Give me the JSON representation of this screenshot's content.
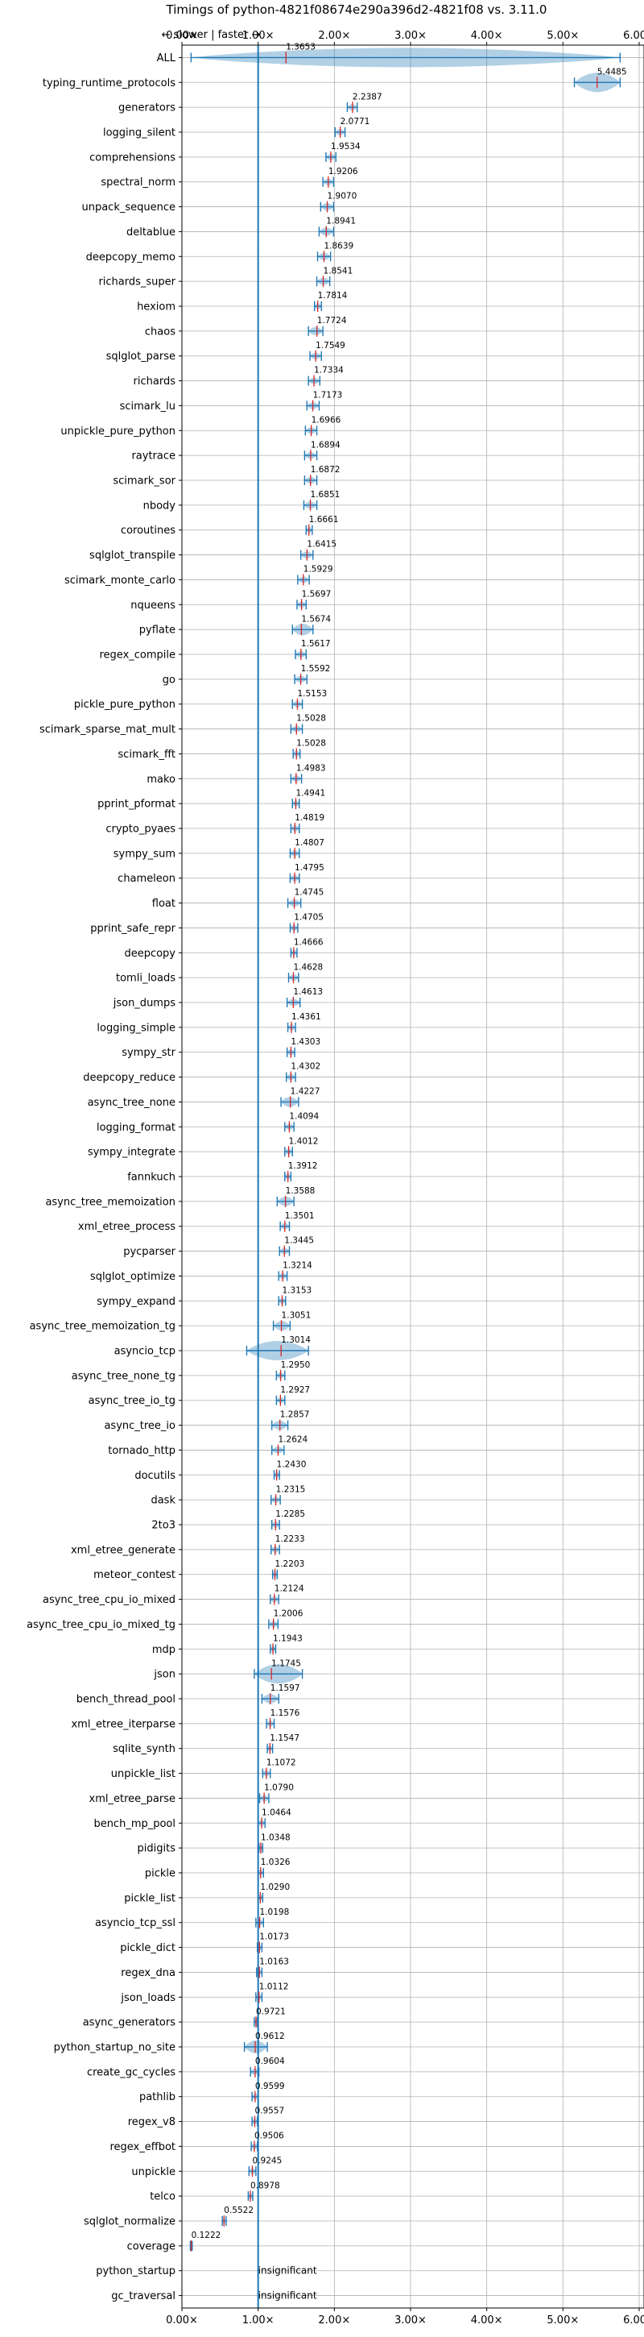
{
  "chart_data": {
    "type": "violin",
    "title": "Timings of python-4821f08674e290a396d2-4821f08 vs. 3.11.0",
    "direction_label": "← slower | faster →",
    "x_ticks": [
      "0.00×",
      "1.00×",
      "2.00×",
      "3.00×",
      "4.00×",
      "5.00×",
      "6.00×"
    ],
    "xlim": [
      0,
      6
    ],
    "reference_line": 1.0,
    "grid": true,
    "colors": {
      "violin": "#1f77b4",
      "mean": "#d62728",
      "axis": "#000000",
      "grid": "#b0b0b0"
    },
    "benchmarks": [
      {
        "name": "ALL",
        "value": "1.3653",
        "v": 1.3653,
        "lo": 0.12,
        "hi": 5.75
      },
      {
        "name": "typing_runtime_protocols",
        "value": "5.4485",
        "v": 5.4485,
        "lo": 5.15,
        "hi": 5.75
      },
      {
        "name": "generators",
        "value": "2.2387",
        "v": 2.2387,
        "lo": 2.17,
        "hi": 2.3
      },
      {
        "name": "logging_silent",
        "value": "2.0771",
        "v": 2.0771,
        "lo": 2.01,
        "hi": 2.14
      },
      {
        "name": "comprehensions",
        "value": "1.9534",
        "v": 1.9534,
        "lo": 1.89,
        "hi": 2.02
      },
      {
        "name": "spectral_norm",
        "value": "1.9206",
        "v": 1.9206,
        "lo": 1.85,
        "hi": 1.99
      },
      {
        "name": "unpack_sequence",
        "value": "1.9070",
        "v": 1.907,
        "lo": 1.82,
        "hi": 1.99
      },
      {
        "name": "deltablue",
        "value": "1.8941",
        "v": 1.8941,
        "lo": 1.8,
        "hi": 1.99
      },
      {
        "name": "deepcopy_memo",
        "value": "1.8639",
        "v": 1.8639,
        "lo": 1.78,
        "hi": 1.95
      },
      {
        "name": "richards_super",
        "value": "1.8541",
        "v": 1.8541,
        "lo": 1.77,
        "hi": 1.94
      },
      {
        "name": "hexiom",
        "value": "1.7814",
        "v": 1.7814,
        "lo": 1.74,
        "hi": 1.83
      },
      {
        "name": "chaos",
        "value": "1.7724",
        "v": 1.7724,
        "lo": 1.66,
        "hi": 1.85
      },
      {
        "name": "sqlglot_parse",
        "value": "1.7549",
        "v": 1.7549,
        "lo": 1.68,
        "hi": 1.83
      },
      {
        "name": "richards",
        "value": "1.7334",
        "v": 1.7334,
        "lo": 1.66,
        "hi": 1.81
      },
      {
        "name": "scimark_lu",
        "value": "1.7173",
        "v": 1.7173,
        "lo": 1.64,
        "hi": 1.8
      },
      {
        "name": "unpickle_pure_python",
        "value": "1.6966",
        "v": 1.6966,
        "lo": 1.62,
        "hi": 1.77
      },
      {
        "name": "raytrace",
        "value": "1.6894",
        "v": 1.6894,
        "lo": 1.61,
        "hi": 1.77
      },
      {
        "name": "scimark_sor",
        "value": "1.6872",
        "v": 1.6872,
        "lo": 1.61,
        "hi": 1.77
      },
      {
        "name": "nbody",
        "value": "1.6851",
        "v": 1.6851,
        "lo": 1.6,
        "hi": 1.77
      },
      {
        "name": "coroutines",
        "value": "1.6661",
        "v": 1.6661,
        "lo": 1.63,
        "hi": 1.71
      },
      {
        "name": "sqlglot_transpile",
        "value": "1.6415",
        "v": 1.6415,
        "lo": 1.56,
        "hi": 1.72
      },
      {
        "name": "scimark_monte_carlo",
        "value": "1.5929",
        "v": 1.5929,
        "lo": 1.52,
        "hi": 1.67
      },
      {
        "name": "nqueens",
        "value": "1.5697",
        "v": 1.5697,
        "lo": 1.51,
        "hi": 1.63
      },
      {
        "name": "pyflate",
        "value": "1.5674",
        "v": 1.5674,
        "lo": 1.45,
        "hi": 1.72
      },
      {
        "name": "regex_compile",
        "value": "1.5617",
        "v": 1.5617,
        "lo": 1.49,
        "hi": 1.63
      },
      {
        "name": "go",
        "value": "1.5592",
        "v": 1.5592,
        "lo": 1.48,
        "hi": 1.64
      },
      {
        "name": "pickle_pure_python",
        "value": "1.5153",
        "v": 1.5153,
        "lo": 1.45,
        "hi": 1.58
      },
      {
        "name": "scimark_sparse_mat_mult",
        "value": "1.5028",
        "v": 1.5028,
        "lo": 1.43,
        "hi": 1.58
      },
      {
        "name": "scimark_fft",
        "value": "1.5028",
        "v": 1.5028,
        "lo": 1.46,
        "hi": 1.55
      },
      {
        "name": "mako",
        "value": "1.4983",
        "v": 1.4983,
        "lo": 1.43,
        "hi": 1.57
      },
      {
        "name": "pprint_pformat",
        "value": "1.4941",
        "v": 1.4941,
        "lo": 1.45,
        "hi": 1.54
      },
      {
        "name": "crypto_pyaes",
        "value": "1.4819",
        "v": 1.4819,
        "lo": 1.43,
        "hi": 1.54
      },
      {
        "name": "sympy_sum",
        "value": "1.4807",
        "v": 1.4807,
        "lo": 1.42,
        "hi": 1.54
      },
      {
        "name": "chameleon",
        "value": "1.4795",
        "v": 1.4795,
        "lo": 1.42,
        "hi": 1.54
      },
      {
        "name": "float",
        "value": "1.4745",
        "v": 1.4745,
        "lo": 1.39,
        "hi": 1.56
      },
      {
        "name": "pprint_safe_repr",
        "value": "1.4705",
        "v": 1.4705,
        "lo": 1.42,
        "hi": 1.52
      },
      {
        "name": "deepcopy",
        "value": "1.4666",
        "v": 1.4666,
        "lo": 1.43,
        "hi": 1.51
      },
      {
        "name": "tomli_loads",
        "value": "1.4628",
        "v": 1.4628,
        "lo": 1.4,
        "hi": 1.53
      },
      {
        "name": "json_dumps",
        "value": "1.4613",
        "v": 1.4613,
        "lo": 1.38,
        "hi": 1.55
      },
      {
        "name": "logging_simple",
        "value": "1.4361",
        "v": 1.4361,
        "lo": 1.39,
        "hi": 1.49
      },
      {
        "name": "sympy_str",
        "value": "1.4303",
        "v": 1.4303,
        "lo": 1.38,
        "hi": 1.48
      },
      {
        "name": "deepcopy_reduce",
        "value": "1.4302",
        "v": 1.4302,
        "lo": 1.37,
        "hi": 1.49
      },
      {
        "name": "async_tree_none",
        "value": "1.4227",
        "v": 1.4227,
        "lo": 1.3,
        "hi": 1.53
      },
      {
        "name": "logging_format",
        "value": "1.4094",
        "v": 1.4094,
        "lo": 1.35,
        "hi": 1.47
      },
      {
        "name": "sympy_integrate",
        "value": "1.4012",
        "v": 1.4012,
        "lo": 1.35,
        "hi": 1.45
      },
      {
        "name": "fannkuch",
        "value": "1.3912",
        "v": 1.3912,
        "lo": 1.35,
        "hi": 1.43
      },
      {
        "name": "async_tree_memoization",
        "value": "1.3588",
        "v": 1.3588,
        "lo": 1.25,
        "hi": 1.47
      },
      {
        "name": "xml_etree_process",
        "value": "1.3501",
        "v": 1.3501,
        "lo": 1.29,
        "hi": 1.41
      },
      {
        "name": "pycparser",
        "value": "1.3445",
        "v": 1.3445,
        "lo": 1.28,
        "hi": 1.41
      },
      {
        "name": "sqlglot_optimize",
        "value": "1.3214",
        "v": 1.3214,
        "lo": 1.27,
        "hi": 1.38
      },
      {
        "name": "sympy_expand",
        "value": "1.3153",
        "v": 1.3153,
        "lo": 1.27,
        "hi": 1.36
      },
      {
        "name": "async_tree_memoization_tg",
        "value": "1.3051",
        "v": 1.3051,
        "lo": 1.2,
        "hi": 1.42
      },
      {
        "name": "asyncio_tcp",
        "value": "1.3014",
        "v": 1.3014,
        "lo": 0.85,
        "hi": 1.66
      },
      {
        "name": "async_tree_none_tg",
        "value": "1.2950",
        "v": 1.295,
        "lo": 1.24,
        "hi": 1.35
      },
      {
        "name": "async_tree_io_tg",
        "value": "1.2927",
        "v": 1.2927,
        "lo": 1.24,
        "hi": 1.35
      },
      {
        "name": "async_tree_io",
        "value": "1.2857",
        "v": 1.2857,
        "lo": 1.18,
        "hi": 1.39
      },
      {
        "name": "tornado_http",
        "value": "1.2624",
        "v": 1.2624,
        "lo": 1.18,
        "hi": 1.34
      },
      {
        "name": "docutils",
        "value": "1.2430",
        "v": 1.243,
        "lo": 1.21,
        "hi": 1.28
      },
      {
        "name": "dask",
        "value": "1.2315",
        "v": 1.2315,
        "lo": 1.17,
        "hi": 1.29
      },
      {
        "name": "2to3",
        "value": "1.2285",
        "v": 1.2285,
        "lo": 1.18,
        "hi": 1.28
      },
      {
        "name": "xml_etree_generate",
        "value": "1.2233",
        "v": 1.2233,
        "lo": 1.17,
        "hi": 1.28
      },
      {
        "name": "meteor_contest",
        "value": "1.2203",
        "v": 1.2203,
        "lo": 1.19,
        "hi": 1.25
      },
      {
        "name": "async_tree_cpu_io_mixed",
        "value": "1.2124",
        "v": 1.2124,
        "lo": 1.16,
        "hi": 1.27
      },
      {
        "name": "async_tree_cpu_io_mixed_tg",
        "value": "1.2006",
        "v": 1.2006,
        "lo": 1.14,
        "hi": 1.26
      },
      {
        "name": "mdp",
        "value": "1.1943",
        "v": 1.1943,
        "lo": 1.16,
        "hi": 1.23
      },
      {
        "name": "json",
        "value": "1.1745",
        "v": 1.1745,
        "lo": 0.95,
        "hi": 1.58
      },
      {
        "name": "bench_thread_pool",
        "value": "1.1597",
        "v": 1.1597,
        "lo": 1.05,
        "hi": 1.27
      },
      {
        "name": "xml_etree_iterparse",
        "value": "1.1576",
        "v": 1.1576,
        "lo": 1.11,
        "hi": 1.21
      },
      {
        "name": "sqlite_synth",
        "value": "1.1547",
        "v": 1.1547,
        "lo": 1.12,
        "hi": 1.19
      },
      {
        "name": "unpickle_list",
        "value": "1.1072",
        "v": 1.1072,
        "lo": 1.06,
        "hi": 1.16
      },
      {
        "name": "xml_etree_parse",
        "value": "1.0790",
        "v": 1.079,
        "lo": 1.02,
        "hi": 1.14
      },
      {
        "name": "bench_mp_pool",
        "value": "1.0464",
        "v": 1.0464,
        "lo": 1.0,
        "hi": 1.09
      },
      {
        "name": "pidigits",
        "value": "1.0348",
        "v": 1.0348,
        "lo": 1.01,
        "hi": 1.06
      },
      {
        "name": "pickle",
        "value": "1.0326",
        "v": 1.0326,
        "lo": 1.0,
        "hi": 1.07
      },
      {
        "name": "pickle_list",
        "value": "1.0290",
        "v": 1.029,
        "lo": 1.0,
        "hi": 1.06
      },
      {
        "name": "asyncio_tcp_ssl",
        "value": "1.0198",
        "v": 1.0198,
        "lo": 0.97,
        "hi": 1.07
      },
      {
        "name": "pickle_dict",
        "value": "1.0173",
        "v": 1.0173,
        "lo": 0.99,
        "hi": 1.05
      },
      {
        "name": "regex_dna",
        "value": "1.0163",
        "v": 1.0163,
        "lo": 0.98,
        "hi": 1.05
      },
      {
        "name": "json_loads",
        "value": "1.0112",
        "v": 1.0112,
        "lo": 0.97,
        "hi": 1.05
      },
      {
        "name": "async_generators",
        "value": "0.9721",
        "v": 0.9721,
        "lo": 0.95,
        "hi": 0.99
      },
      {
        "name": "python_startup_no_site",
        "value": "0.9612",
        "v": 0.9612,
        "lo": 0.82,
        "hi": 1.12
      },
      {
        "name": "create_gc_cycles",
        "value": "0.9604",
        "v": 0.9604,
        "lo": 0.9,
        "hi": 1.01
      },
      {
        "name": "pathlib",
        "value": "0.9599",
        "v": 0.9599,
        "lo": 0.92,
        "hi": 1.0
      },
      {
        "name": "regex_v8",
        "value": "0.9557",
        "v": 0.9557,
        "lo": 0.92,
        "hi": 0.99
      },
      {
        "name": "regex_effbot",
        "value": "0.9506",
        "v": 0.9506,
        "lo": 0.91,
        "hi": 0.99
      },
      {
        "name": "unpickle",
        "value": "0.9245",
        "v": 0.9245,
        "lo": 0.88,
        "hi": 0.97
      },
      {
        "name": "telco",
        "value": "0.8978",
        "v": 0.8978,
        "lo": 0.87,
        "hi": 0.93
      },
      {
        "name": "sqlglot_normalize",
        "value": "0.5522",
        "v": 0.5522,
        "lo": 0.53,
        "hi": 0.58
      },
      {
        "name": "coverage",
        "value": "0.1222",
        "v": 0.1222,
        "lo": 0.11,
        "hi": 0.135
      },
      {
        "name": "python_startup",
        "value": "insignificant",
        "v": null,
        "lo": null,
        "hi": null
      },
      {
        "name": "gc_traversal",
        "value": "insignificant",
        "v": null,
        "lo": null,
        "hi": null
      }
    ]
  }
}
